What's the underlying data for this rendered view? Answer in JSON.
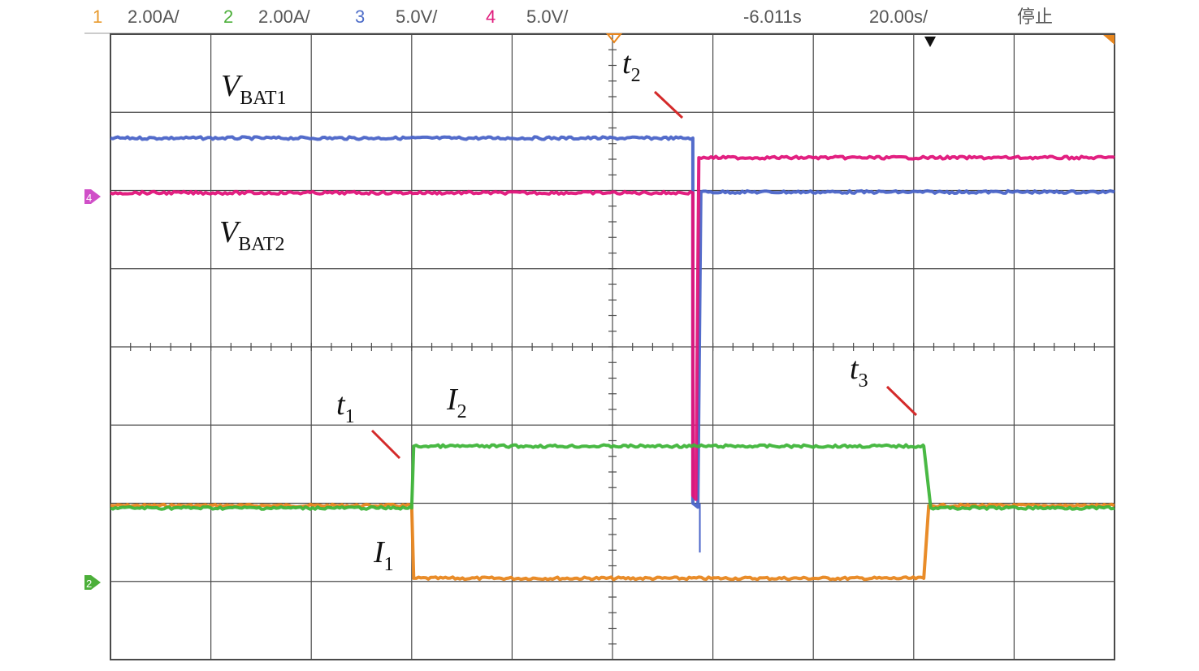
{
  "status_bar": {
    "channels": [
      {
        "number": "1",
        "scale": "2.00A/",
        "color": "#e89a2c"
      },
      {
        "number": "2",
        "scale": "2.00A/",
        "color": "#4caf3a"
      },
      {
        "number": "3",
        "scale": "5.0V/",
        "color": "#4f6ec9"
      },
      {
        "number": "4",
        "scale": "5.0V/",
        "color": "#e0197b"
      }
    ],
    "time_offset": "-6.011s",
    "time_scale": "20.00s/",
    "run_state": "停止"
  },
  "colors": {
    "ch1": "#e8861e",
    "ch2": "#3fb53a",
    "ch3": "#4a64c8",
    "ch4": "#e0147a",
    "grid": "#4a4a4a",
    "annotation_line": "#d42a2a"
  },
  "chart_data": {
    "type": "line",
    "title": "",
    "xlabel": "",
    "ylabel": "",
    "x_range_div": [
      0,
      10
    ],
    "y_range_div": [
      0,
      8
    ],
    "grid": true,
    "series": [
      {
        "name": "V_BAT1",
        "channel": "3",
        "x": [
          0,
          5.8,
          5.8,
          5.85,
          5.88,
          10
        ],
        "y": [
          6.67,
          6.67,
          2.0,
          1.95,
          5.98,
          5.98
        ]
      },
      {
        "name": "V_BAT2",
        "channel": "4",
        "x": [
          0,
          5.8,
          5.8,
          5.83,
          5.86,
          10
        ],
        "y": [
          5.97,
          5.97,
          2.1,
          2.05,
          6.42,
          6.42
        ]
      },
      {
        "name": "I_1",
        "channel": "1",
        "x": [
          0,
          3.0,
          3.02,
          8.1,
          8.15,
          10
        ],
        "y": [
          1.97,
          1.97,
          1.04,
          1.04,
          1.97,
          1.97
        ]
      },
      {
        "name": "I_2",
        "channel": "2",
        "x": [
          0,
          3.0,
          3.02,
          8.1,
          8.17,
          10
        ],
        "y": [
          1.94,
          1.94,
          2.73,
          2.73,
          1.94,
          1.94
        ]
      }
    ],
    "annotations": [
      {
        "main": "V",
        "sub": "BAT1"
      },
      {
        "main": "V",
        "sub": "BAT2"
      },
      {
        "main": "t",
        "sub": "1"
      },
      {
        "main": "t",
        "sub": "2"
      },
      {
        "main": "t",
        "sub": "3"
      },
      {
        "main": "I",
        "sub": "1"
      },
      {
        "main": "I",
        "sub": "2"
      }
    ]
  }
}
